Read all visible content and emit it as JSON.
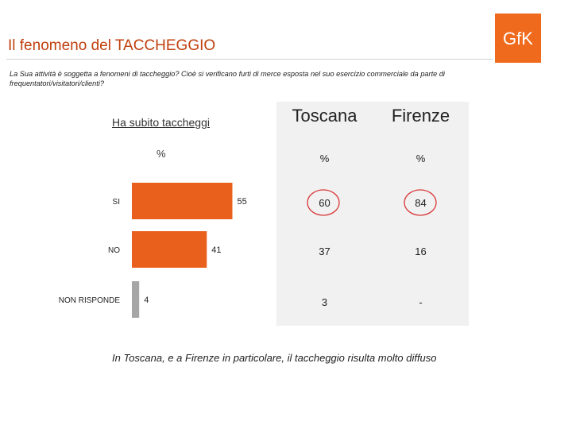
{
  "header": {
    "title": "Il fenomeno del TACCHEGGIO",
    "question": "La Sua attività è soggetta a fenomeni di taccheggio? Cioè si verificano furti di merce esposta nel suo esercizio commerciale da parte di frequentatori/visitatori/clienti?",
    "logo_text": "GfK"
  },
  "colors": {
    "accent": "#e8601c",
    "muted": "#a6a6a6",
    "logo": "#f06a1d"
  },
  "chart_data": {
    "type": "bar",
    "orientation": "horizontal",
    "title": "Ha subito taccheggi",
    "unit_label": "%",
    "categories": [
      "SI",
      "NO",
      "NON RISPONDE"
    ],
    "values": [
      55,
      41,
      4
    ],
    "value_labels": [
      "55",
      "41",
      "4"
    ],
    "bar_colors": [
      "#e8601c",
      "#e8601c",
      "#a6a6a6"
    ],
    "xlim": [
      0,
      100
    ],
    "grid": false,
    "legend": "none"
  },
  "table": {
    "headers": [
      "Toscana",
      "Firenze"
    ],
    "unit_row": [
      "%",
      "%"
    ],
    "rows": [
      [
        "60",
        "84"
      ],
      [
        "37",
        "16"
      ],
      [
        "3",
        "-"
      ]
    ],
    "circled": [
      "0.0",
      "0.1"
    ]
  },
  "footer": "In Toscana, e a Firenze in particolare, il taccheggio risulta molto diffuso"
}
